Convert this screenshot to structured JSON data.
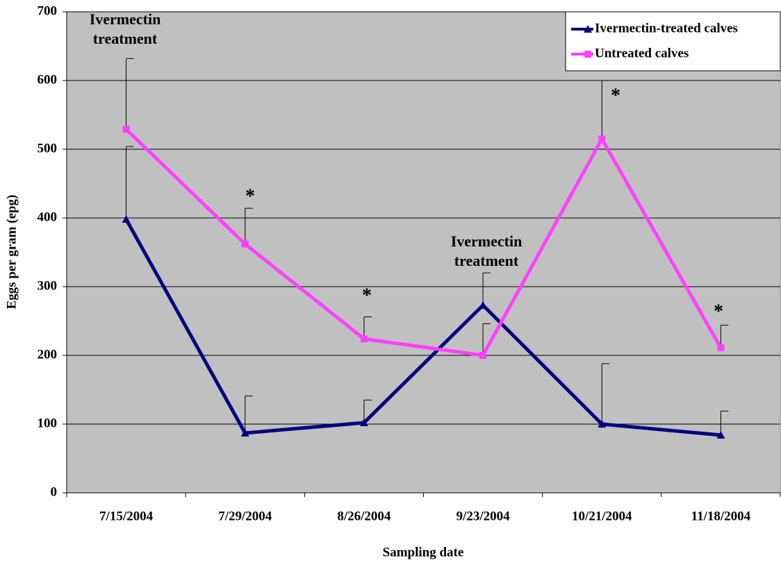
{
  "chart_data": {
    "type": "line",
    "xlabel": "Sampling date",
    "ylabel": "Eggs per gram (epg)",
    "categories": [
      "7/15/2004",
      "7/29/2004",
      "8/26/2004",
      "9/23/2004",
      "10/21/2004",
      "11/18/2004"
    ],
    "series": [
      {
        "name": "Ivermectin-treated calves",
        "color": "#000080",
        "marker": "triangle",
        "values": [
          398,
          87,
          102,
          273,
          100,
          84
        ],
        "errors": [
          106,
          54,
          33,
          47,
          88,
          35
        ]
      },
      {
        "name": "Untreated calves",
        "color": "#ff40ff",
        "marker": "square",
        "values": [
          529,
          362,
          224,
          200,
          515,
          211
        ],
        "errors": [
          103,
          52,
          32,
          46,
          85,
          33
        ]
      }
    ],
    "annotations": [
      "Ivermectin treatment",
      "Ivermectin treatment"
    ],
    "significance_marks": [
      "*",
      "*",
      "*",
      "*"
    ],
    "ylim": [
      0,
      700
    ],
    "yticks": [
      0,
      100,
      200,
      300,
      400,
      500,
      600,
      700
    ],
    "grid": true,
    "legend": "upper right",
    "background": "#c0c0c0"
  }
}
